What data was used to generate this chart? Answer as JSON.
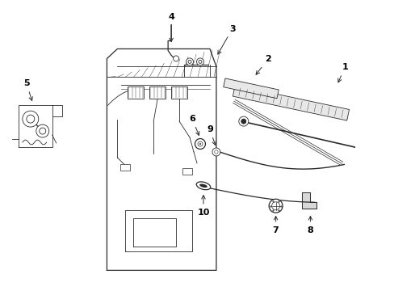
{
  "bg_color": "#ffffff",
  "line_color": "#2a2a2a",
  "figsize": [
    4.89,
    3.6
  ],
  "dpi": 100,
  "door_panel": {
    "outer_x": [
      1.42,
      1.3,
      1.3,
      2.55,
      2.65,
      2.65,
      1.42
    ],
    "outer_y": [
      0.22,
      0.3,
      2.92,
      2.92,
      2.72,
      0.22,
      0.22
    ]
  }
}
